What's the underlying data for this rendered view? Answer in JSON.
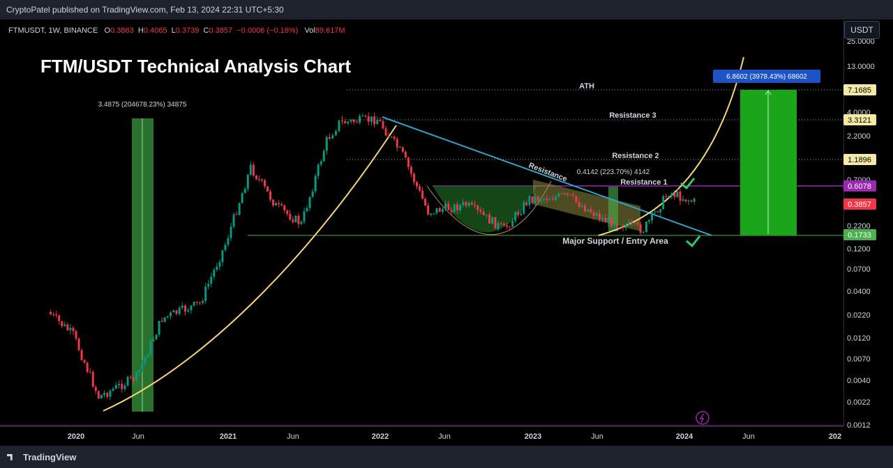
{
  "header": {
    "published": "CryptoPatel published on TradingView.com, Feb 13, 2024 22:31 UTC+5:30"
  },
  "currency_button": "USDT",
  "symbol": {
    "name": "FTMUSDT, 1W, BINANCE",
    "o_label": "O",
    "o": "0.3863",
    "h_label": "H",
    "h": "0.4065",
    "l_label": "L",
    "l": "0.3739",
    "c_label": "C",
    "c": "0.3857",
    "change": "−0.0006 (−0.16%)",
    "vol_label": "Vol",
    "vol": "89.617M"
  },
  "footer": {
    "brand": "TradingView"
  },
  "colors": {
    "up": "#089981",
    "down": "#f23645",
    "curve": "#f7d774",
    "trend": "#2fa4c8",
    "support": "#4caf50",
    "resistance1": "#9c27b0",
    "target_box": "#1aa51a"
  },
  "chart_data": {
    "type": "candlestick",
    "title": "FTM/USDT Technical Analysis Chart",
    "y_scale": "log",
    "y_ticks": [
      "25.0000",
      "13.0000",
      "7.1685",
      "4.0000",
      "3.3121",
      "2.2000",
      "1.1896",
      "0.7000",
      "0.6078",
      "0.3857",
      "0.2200",
      "0.1733",
      "0.1200",
      "0.0700",
      "0.0400",
      "0.0220",
      "0.0120",
      "0.0070",
      "0.0040",
      "0.0022",
      "0.0012"
    ],
    "x_ticks": [
      "2020",
      "Jun",
      "2021",
      "Jun",
      "2022",
      "Jun",
      "2023",
      "Jun",
      "2024",
      "Jun",
      "202"
    ],
    "price_labels": [
      {
        "value": "7.1685",
        "kind": "ath"
      },
      {
        "value": "3.3121",
        "kind": "resistance"
      },
      {
        "value": "1.1896",
        "kind": "resistance"
      },
      {
        "value": "0.6078",
        "kind": "resistance1"
      },
      {
        "value": "0.3857",
        "kind": "last"
      },
      {
        "value": "0.1733",
        "kind": "support"
      }
    ],
    "levels": [
      {
        "name": "ATH",
        "price": 7.1685
      },
      {
        "name": "Resistance 3",
        "price": 3.3121
      },
      {
        "name": "Resistance 2",
        "price": 1.1896
      },
      {
        "name": "Resistance 1",
        "price": 0.6078
      },
      {
        "name": "Major Support / Entry Area",
        "price": 0.1733
      }
    ],
    "annotations": {
      "trendline": "Resistance",
      "box1": "3.4875 (204678.23%) 34875",
      "box2": "0.4142 (223.70%) 4142",
      "box3": "6.8602 (3978.43%) 68602"
    },
    "candles_approx": [
      {
        "t": "2019-11",
        "close": 0.0225
      },
      {
        "t": "2020-01",
        "close": 0.0125
      },
      {
        "t": "2020-03",
        "close": 0.0025
      },
      {
        "t": "2020-06",
        "close": 0.0042
      },
      {
        "t": "2020-08",
        "close": 0.019
      },
      {
        "t": "2020-11",
        "close": 0.028
      },
      {
        "t": "2021-01",
        "close": 0.13
      },
      {
        "t": "2021-03",
        "close": 0.95
      },
      {
        "t": "2021-05",
        "close": 0.35
      },
      {
        "t": "2021-07",
        "close": 0.22
      },
      {
        "t": "2021-09",
        "close": 1.9
      },
      {
        "t": "2021-10",
        "close": 3.0
      },
      {
        "t": "2022-01",
        "close": 3.3
      },
      {
        "t": "2022-03",
        "close": 1.3
      },
      {
        "t": "2022-05",
        "close": 0.3
      },
      {
        "t": "2022-08",
        "close": 0.36
      },
      {
        "t": "2022-11",
        "close": 0.19
      },
      {
        "t": "2023-01",
        "close": 0.42
      },
      {
        "t": "2023-04",
        "close": 0.45
      },
      {
        "t": "2023-07",
        "close": 0.24
      },
      {
        "t": "2023-10",
        "close": 0.19
      },
      {
        "t": "2023-12",
        "close": 0.5
      },
      {
        "t": "2024-02",
        "close": 0.3857
      }
    ]
  }
}
